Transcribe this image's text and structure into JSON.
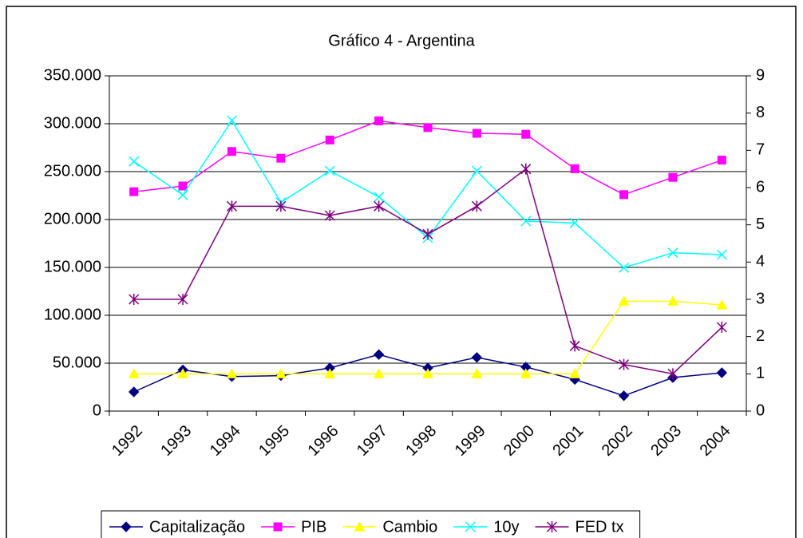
{
  "chart_data": {
    "type": "line",
    "title": "Gráfico 4 - Argentina",
    "categories": [
      "1992",
      "1993",
      "1994",
      "1995",
      "1996",
      "1997",
      "1998",
      "1999",
      "2000",
      "2001",
      "2002",
      "2003",
      "2004"
    ],
    "series": [
      {
        "name": "Capitalização",
        "color": "#000080",
        "marker": "diamond",
        "axis": "y",
        "values": [
          20000,
          43000,
          36000,
          37000,
          45000,
          59000,
          45000,
          56000,
          46000,
          33000,
          16000,
          35000,
          40000
        ]
      },
      {
        "name": "PIB",
        "color": "#ff00ff",
        "marker": "square",
        "axis": "y",
        "values": [
          229000,
          235000,
          271000,
          264000,
          283000,
          303000,
          296000,
          290000,
          289000,
          253000,
          226000,
          244000,
          262000
        ]
      },
      {
        "name": "Cambio",
        "color": "#ffff00",
        "marker": "triangle",
        "axis": "y2",
        "values": [
          1,
          1,
          1,
          1,
          1,
          1,
          1,
          1,
          1,
          1,
          2.95,
          2.95,
          2.85
        ]
      },
      {
        "name": "10y",
        "color": "#00ffff",
        "marker": "x",
        "axis": "y2",
        "values": [
          6.7,
          5.8,
          7.8,
          5.6,
          6.45,
          5.75,
          4.65,
          6.45,
          5.1,
          5.05,
          3.85,
          4.25,
          4.2
        ]
      },
      {
        "name": "FED tx",
        "color": "#800080",
        "marker": "star",
        "axis": "y2",
        "values": [
          3,
          3,
          5.5,
          5.5,
          5.25,
          5.5,
          4.75,
          5.5,
          6.5,
          1.75,
          1.25,
          1,
          2.25
        ]
      }
    ],
    "ylim": [
      0,
      350000
    ],
    "yticks": [
      0,
      {
        "value": 50000,
        "label": "50.000"
      },
      {
        "value": 100000,
        "label": "100.000"
      },
      {
        "value": 150000,
        "label": "150.000"
      },
      {
        "value": 200000,
        "label": "200.000"
      },
      {
        "value": 250000,
        "label": "250.000"
      },
      {
        "value": 300000,
        "label": "300.000"
      },
      {
        "value": 350000,
        "label": "350.000"
      }
    ],
    "y2lim": [
      0,
      9
    ],
    "y2ticks": [
      0,
      1,
      2,
      3,
      4,
      5,
      6,
      7,
      8,
      9
    ],
    "grid": true,
    "legend": "bottom"
  }
}
